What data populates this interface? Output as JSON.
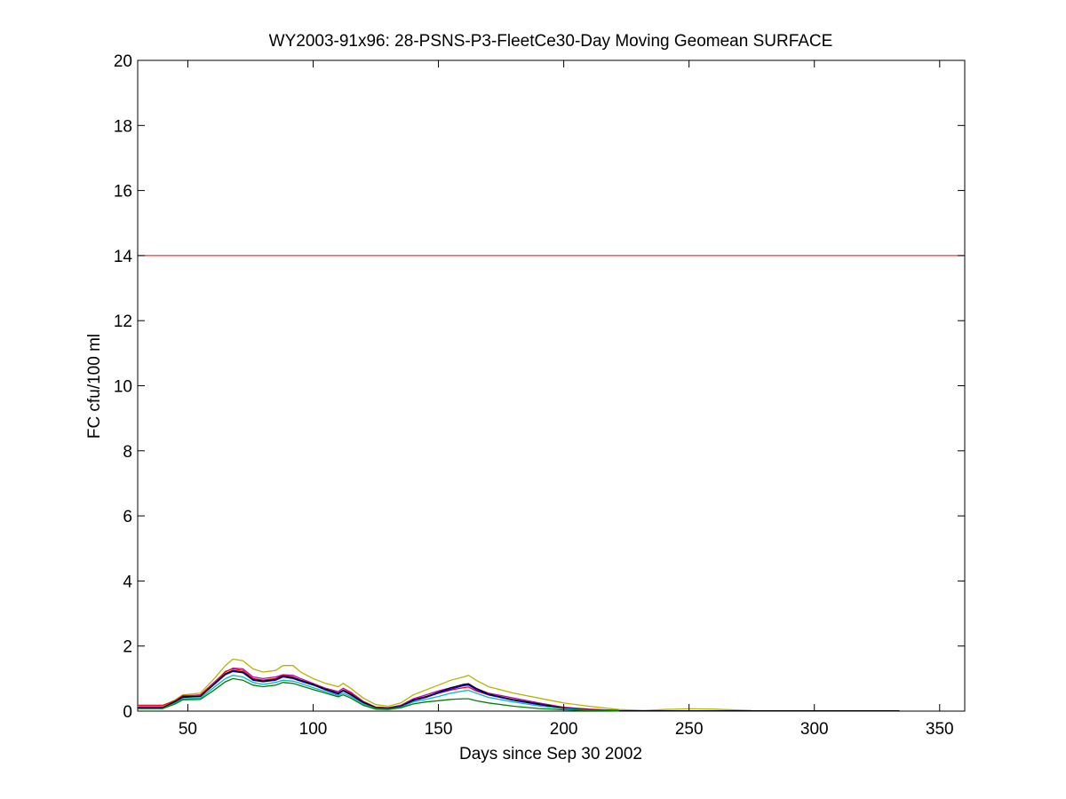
{
  "chart_data": {
    "type": "line",
    "title": "WY2003-91x96: 28-PSNS-P3-FleetCe30-Day Moving Geomean SURFACE",
    "xlabel": "Days since Sep 30 2002",
    "ylabel": "FC cfu/100 ml",
    "xlim": [
      30,
      360
    ],
    "ylim": [
      0,
      20
    ],
    "xticks": [
      50,
      100,
      150,
      200,
      250,
      300,
      350
    ],
    "yticks": [
      0,
      2,
      4,
      6,
      8,
      10,
      12,
      14,
      16,
      18,
      20
    ],
    "grid": false,
    "box": true,
    "reference_line": {
      "y": 14,
      "color": "#ff0000"
    },
    "series": [
      {
        "color": "#b5b500",
        "x": [
          30,
          40,
          45,
          48,
          55,
          60,
          65,
          68,
          72,
          76,
          80,
          85,
          88,
          92,
          95,
          100,
          105,
          110,
          112,
          115,
          120,
          125,
          130,
          135,
          140,
          145,
          150,
          155,
          160,
          162,
          165,
          170,
          180,
          190,
          200,
          210,
          222,
          232,
          240,
          250,
          260,
          275
        ],
        "y": [
          0.15,
          0.15,
          0.35,
          0.5,
          0.55,
          0.95,
          1.4,
          1.6,
          1.55,
          1.3,
          1.2,
          1.25,
          1.4,
          1.4,
          1.2,
          1.0,
          0.85,
          0.75,
          0.85,
          0.7,
          0.4,
          0.2,
          0.15,
          0.25,
          0.5,
          0.65,
          0.8,
          0.95,
          1.05,
          1.1,
          0.95,
          0.75,
          0.55,
          0.4,
          0.25,
          0.15,
          0.05,
          0.02,
          0.05,
          0.07,
          0.06,
          0.02
        ]
      },
      {
        "color": "#bf00bf",
        "x": [
          30,
          40,
          45,
          48,
          55,
          60,
          65,
          68,
          72,
          76,
          80,
          85,
          88,
          92,
          95,
          100,
          105,
          110,
          112,
          115,
          120,
          125,
          130,
          135,
          140,
          145,
          150,
          155,
          160,
          162,
          165,
          170,
          180,
          190,
          200,
          210,
          222
        ],
        "y": [
          0.12,
          0.12,
          0.3,
          0.45,
          0.5,
          0.85,
          1.2,
          1.32,
          1.3,
          1.05,
          1.0,
          1.05,
          1.12,
          1.1,
          1.0,
          0.85,
          0.7,
          0.6,
          0.7,
          0.58,
          0.3,
          0.12,
          0.1,
          0.18,
          0.38,
          0.5,
          0.62,
          0.72,
          0.8,
          0.82,
          0.7,
          0.55,
          0.4,
          0.25,
          0.12,
          0.06,
          0.02
        ]
      },
      {
        "color": "#ff0000",
        "x": [
          30,
          40,
          45,
          48,
          55,
          60,
          65,
          68,
          72,
          76,
          80,
          85,
          88,
          92,
          95,
          100,
          105,
          110,
          112,
          115,
          120,
          125,
          130,
          135,
          140,
          145,
          150,
          155,
          160,
          162,
          165,
          170,
          180,
          190,
          200,
          210,
          222
        ],
        "y": [
          0.18,
          0.18,
          0.32,
          0.48,
          0.48,
          0.82,
          1.22,
          1.3,
          1.25,
          1.0,
          0.95,
          1.0,
          1.1,
          1.05,
          0.95,
          0.82,
          0.68,
          0.55,
          0.65,
          0.55,
          0.28,
          0.12,
          0.1,
          0.15,
          0.35,
          0.45,
          0.55,
          0.65,
          0.72,
          0.74,
          0.62,
          0.5,
          0.35,
          0.22,
          0.1,
          0.05,
          0.02
        ]
      },
      {
        "color": "#0000ff",
        "x": [
          30,
          40,
          45,
          48,
          55,
          60,
          65,
          68,
          72,
          76,
          80,
          85,
          88,
          92,
          95,
          100,
          105,
          110,
          112,
          115,
          120,
          125,
          130,
          135,
          140,
          145,
          150,
          155,
          160,
          162,
          165,
          170,
          180,
          190,
          200,
          210,
          222
        ],
        "y": [
          0.1,
          0.1,
          0.28,
          0.42,
          0.45,
          0.78,
          1.12,
          1.22,
          1.18,
          0.95,
          0.9,
          0.95,
          1.05,
          1.0,
          0.92,
          0.8,
          0.65,
          0.52,
          0.62,
          0.5,
          0.25,
          0.1,
          0.08,
          0.14,
          0.32,
          0.42,
          0.55,
          0.68,
          0.78,
          0.8,
          0.66,
          0.5,
          0.33,
          0.2,
          0.08,
          0.04,
          0.01
        ]
      },
      {
        "color": "#000000",
        "x": [
          30,
          40,
          45,
          48,
          55,
          60,
          65,
          68,
          72,
          76,
          80,
          85,
          88,
          92,
          95,
          100,
          105,
          110,
          112,
          115,
          120,
          125,
          130,
          135,
          140,
          145,
          150,
          155,
          160,
          162,
          165,
          170,
          180,
          190,
          200,
          210,
          222,
          284,
          312,
          326,
          334
        ],
        "y": [
          0.1,
          0.1,
          0.3,
          0.44,
          0.45,
          0.8,
          1.15,
          1.25,
          1.2,
          0.98,
          0.92,
          0.98,
          1.08,
          1.03,
          0.95,
          0.82,
          0.67,
          0.55,
          0.64,
          0.52,
          0.27,
          0.11,
          0.09,
          0.15,
          0.34,
          0.44,
          0.58,
          0.72,
          0.82,
          0.84,
          0.7,
          0.52,
          0.35,
          0.22,
          0.09,
          0.04,
          0.01,
          0.01,
          0.01,
          0.01,
          0.01
        ]
      },
      {
        "color": "#00bfbf",
        "x": [
          30,
          40,
          45,
          48,
          55,
          60,
          65,
          68,
          72,
          76,
          80,
          85,
          88,
          92,
          95,
          100,
          105,
          110,
          112,
          115,
          120,
          125,
          130,
          135,
          140,
          145,
          150,
          155,
          160,
          162,
          165,
          170,
          180,
          190,
          200,
          210,
          222
        ],
        "y": [
          0.08,
          0.08,
          0.25,
          0.38,
          0.4,
          0.7,
          1.0,
          1.1,
          1.05,
          0.88,
          0.82,
          0.88,
          0.95,
          0.92,
          0.85,
          0.72,
          0.6,
          0.48,
          0.55,
          0.45,
          0.22,
          0.08,
          0.06,
          0.12,
          0.28,
          0.36,
          0.45,
          0.55,
          0.62,
          0.64,
          0.55,
          0.42,
          0.28,
          0.16,
          0.07,
          0.03,
          0.01
        ]
      },
      {
        "color": "#008000",
        "x": [
          30,
          40,
          45,
          48,
          55,
          60,
          65,
          68,
          72,
          76,
          80,
          85,
          88,
          92,
          95,
          100,
          105,
          110,
          112,
          115,
          120,
          125,
          130,
          135,
          140,
          145,
          150,
          155,
          160,
          162,
          165,
          170,
          180,
          190,
          200,
          210,
          222
        ],
        "y": [
          0.08,
          0.08,
          0.22,
          0.35,
          0.36,
          0.62,
          0.9,
          1.0,
          0.95,
          0.8,
          0.75,
          0.8,
          0.88,
          0.85,
          0.78,
          0.66,
          0.55,
          0.44,
          0.5,
          0.4,
          0.18,
          0.06,
          0.05,
          0.1,
          0.22,
          0.28,
          0.32,
          0.36,
          0.38,
          0.38,
          0.32,
          0.25,
          0.15,
          0.08,
          0.04,
          0.02,
          0.01
        ]
      }
    ]
  }
}
